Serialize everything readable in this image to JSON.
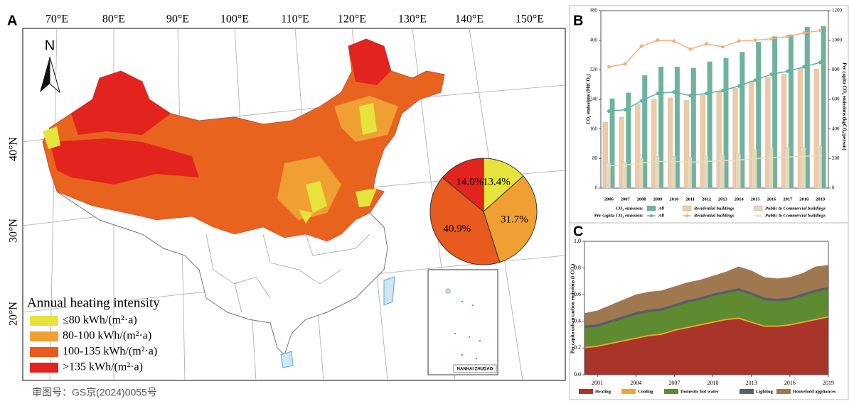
{
  "panel_labels": [
    "A",
    "B",
    "C"
  ],
  "map": {
    "lon_labels": [
      "70°E",
      "80°E",
      "90°E",
      "100°E",
      "110°E",
      "120°E",
      "130°E",
      "140°E",
      "150°E"
    ],
    "lat_labels": [
      "40°N",
      "30°N",
      "20°N"
    ],
    "north_label": "N",
    "inset_label": "NANHAI ZHUDAO",
    "approval": "审图号：GS京(2024)0055号"
  },
  "chart_data": [
    {
      "type": "pie",
      "legend_title": "Annual heating intensity",
      "categories": [
        "≤80 kWh/(m²·a)",
        "80-100 kWh/(m²·a)",
        "100-135 kWh/(m²·a)",
        ">135 kWh/(m²·a)"
      ],
      "values": [
        13.4,
        31.7,
        40.9,
        14.0
      ],
      "value_labels": [
        "13.4%",
        "31.7%",
        "40.9%",
        "14.0%"
      ],
      "colors": [
        "#e6e43c",
        "#f0a032",
        "#e85a1e",
        "#e2231e"
      ]
    },
    {
      "type": "bar-line",
      "categories": [
        "2006",
        "2007",
        "2008",
        "2009",
        "2010",
        "2011",
        "2012",
        "2013",
        "2014",
        "2015",
        "2016",
        "2017",
        "2018",
        "2019"
      ],
      "ylabel": "CO₂ emissions (MtCO₂)",
      "y2label": "Per capita CO₂ emissions (kgCO₂/person)",
      "ylim": [
        0,
        480
      ],
      "yticks": [
        0,
        80,
        160,
        240,
        320,
        400,
        480
      ],
      "y2lim": [
        0,
        1200
      ],
      "y2ticks": [
        0,
        200,
        400,
        600,
        800,
        1000,
        1200
      ],
      "legend_rows": [
        "CO₂ emission:",
        "Per capita CO₂ emission:"
      ],
      "series": [
        {
          "name": "All",
          "kind": "bar",
          "color": "#6fb39c",
          "values": [
            242,
            258,
            305,
            328,
            328,
            325,
            342,
            352,
            368,
            395,
            410,
            415,
            436,
            438
          ]
        },
        {
          "name": "Residential buildings",
          "kind": "bar",
          "color": "#f2c9a2",
          "values": [
            178,
            192,
            226,
            240,
            244,
            238,
            252,
            262,
            270,
            290,
            300,
            308,
            324,
            322
          ]
        },
        {
          "name": "Public & Commercial buildings",
          "kind": "bar",
          "color": "#e6d8bc",
          "values": [
            68,
            70,
            80,
            86,
            86,
            84,
            88,
            90,
            94,
            104,
            108,
            110,
            110,
            115
          ]
        },
        {
          "name": "All",
          "kind": "line",
          "axis": "y2",
          "color": "#5fb3a2",
          "values": [
            520,
            530,
            590,
            640,
            650,
            625,
            640,
            660,
            690,
            730,
            770,
            790,
            820,
            850
          ]
        },
        {
          "name": "Residential buildings",
          "kind": "line",
          "axis": "y2",
          "color": "#f2b07a",
          "values": [
            820,
            840,
            960,
            1000,
            995,
            940,
            975,
            955,
            995,
            1000,
            1010,
            1025,
            1050,
            1065
          ]
        },
        {
          "name": "Public & Commercial buildings",
          "kind": "line",
          "axis": "y2",
          "color": "#e8dcc0",
          "values": [
            150,
            155,
            170,
            180,
            180,
            175,
            180,
            185,
            190,
            200,
            205,
            210,
            215,
            220
          ]
        }
      ]
    },
    {
      "type": "stacked-area",
      "x": [
        2000,
        2001,
        2002,
        2003,
        2004,
        2005,
        2006,
        2007,
        2008,
        2009,
        2010,
        2011,
        2012,
        2013,
        2014,
        2015,
        2016,
        2017,
        2018,
        2019
      ],
      "xlim": [
        2000,
        2019
      ],
      "xticks": [
        2001,
        2004,
        2007,
        2010,
        2013,
        2016,
        2019
      ],
      "ylim": [
        0,
        1
      ],
      "yticks": [
        {
          "value": 0,
          "label": "0.0"
        },
        0.2,
        0.4,
        0.6,
        0.8,
        {
          "value": 1,
          "label": "1.0"
        }
      ],
      "ylabel": "Per capita urban carbon emissions (t CO₂)",
      "series": [
        {
          "name": "Heating",
          "color": "#a8342a",
          "values": [
            0.2,
            0.21,
            0.23,
            0.25,
            0.27,
            0.29,
            0.3,
            0.33,
            0.35,
            0.37,
            0.39,
            0.41,
            0.42,
            0.39,
            0.36,
            0.36,
            0.37,
            0.39,
            0.41,
            0.43
          ]
        },
        {
          "name": "Cooling",
          "color": "#f0a830",
          "values": [
            0.01,
            0.01,
            0.01,
            0.01,
            0.01,
            0.01,
            0.01,
            0.01,
            0.01,
            0.01,
            0.01,
            0.01,
            0.01,
            0.01,
            0.01,
            0.01,
            0.01,
            0.01,
            0.01,
            0.01
          ]
        },
        {
          "name": "Domestic hot water",
          "color": "#5e8a30",
          "values": [
            0.14,
            0.14,
            0.15,
            0.16,
            0.17,
            0.17,
            0.17,
            0.17,
            0.18,
            0.18,
            0.19,
            0.19,
            0.2,
            0.2,
            0.19,
            0.18,
            0.18,
            0.19,
            0.2,
            0.2
          ]
        },
        {
          "name": "Lighting",
          "color": "#5a5f68",
          "values": [
            0.02,
            0.02,
            0.02,
            0.02,
            0.02,
            0.02,
            0.02,
            0.02,
            0.02,
            0.02,
            0.02,
            0.02,
            0.02,
            0.02,
            0.02,
            0.02,
            0.02,
            0.02,
            0.02,
            0.02
          ]
        },
        {
          "name": "Household appliances",
          "color": "#a07850",
          "values": [
            0.09,
            0.1,
            0.11,
            0.12,
            0.13,
            0.13,
            0.13,
            0.13,
            0.13,
            0.13,
            0.13,
            0.14,
            0.16,
            0.16,
            0.15,
            0.15,
            0.15,
            0.15,
            0.17,
            0.16
          ]
        }
      ]
    }
  ]
}
